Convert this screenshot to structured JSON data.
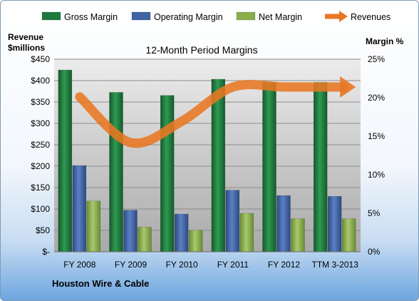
{
  "chart_data": {
    "type": "bar",
    "title": "12-Month Period Margins",
    "subtitle": "",
    "company": "Houston Wire & Cable",
    "left_axis_label_line1": "Revenue",
    "left_axis_label_line2": "$millions",
    "right_axis_label": "Margin %",
    "categories": [
      "FY 2008",
      "FY 2009",
      "FY 2010",
      "FY 2011",
      "FY 2012",
      "TTM 3-2013"
    ],
    "left_ylim": [
      0,
      450
    ],
    "left_ticks": [
      "$-",
      "$50",
      "$100",
      "$150",
      "$200",
      "$250",
      "$300",
      "$350",
      "$400",
      "$450"
    ],
    "right_ylim": [
      0,
      25
    ],
    "right_ticks": [
      "0%",
      "5%",
      "10%",
      "15%",
      "20%",
      "25%"
    ],
    "grid": true,
    "legend_position": "top",
    "series": [
      {
        "name": "Gross Margin",
        "kind": "bar",
        "axis": "right",
        "color": "#1e7a3c",
        "values": [
          23.6,
          20.7,
          20.3,
          22.4,
          22.0,
          22.0
        ]
      },
      {
        "name": "Operating Margin",
        "kind": "bar",
        "axis": "right",
        "color": "#3f63a6",
        "values": [
          11.2,
          5.4,
          4.9,
          8.0,
          7.3,
          7.2
        ]
      },
      {
        "name": "Net Margin",
        "kind": "bar",
        "axis": "right",
        "color": "#8aae4b",
        "values": [
          6.6,
          3.2,
          2.8,
          5.0,
          4.3,
          4.3
        ]
      },
      {
        "name": "Revenues",
        "kind": "line",
        "axis": "left",
        "color": "#e87722",
        "values": [
          362,
          255,
          305,
          385,
          385,
          385
        ]
      }
    ]
  }
}
